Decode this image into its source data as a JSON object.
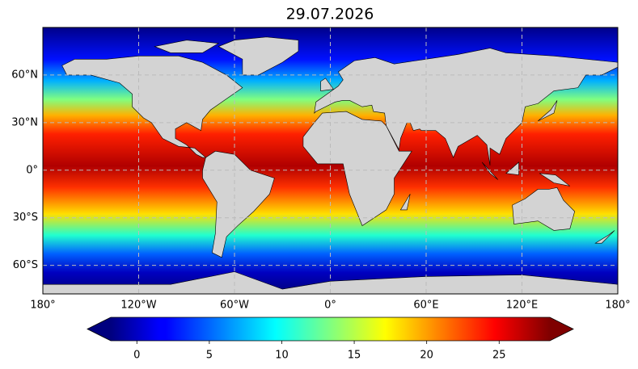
{
  "title": "29.07.2026",
  "map": {
    "xlim": [
      -180,
      180
    ],
    "ylim": [
      -78,
      90
    ],
    "xticks": [
      {
        "value": -180,
        "label": "180°"
      },
      {
        "value": -120,
        "label": "120°W"
      },
      {
        "value": -60,
        "label": "60°W"
      },
      {
        "value": 0,
        "label": "0°"
      },
      {
        "value": 60,
        "label": "60°E"
      },
      {
        "value": 120,
        "label": "120°E"
      },
      {
        "value": 180,
        "label": "180°"
      }
    ],
    "yticks": [
      {
        "value": 60,
        "label": "60°N"
      },
      {
        "value": 30,
        "label": "30°N"
      },
      {
        "value": 0,
        "label": "0°"
      },
      {
        "value": -30,
        "label": "30°S"
      },
      {
        "value": -60,
        "label": "60°S"
      }
    ],
    "grid": true
  },
  "colorbar": {
    "colormap": "jet",
    "clim": [
      -1.8,
      28.5
    ],
    "ticks": [
      0,
      5,
      10,
      15,
      20,
      25
    ],
    "extend": "both"
  }
}
